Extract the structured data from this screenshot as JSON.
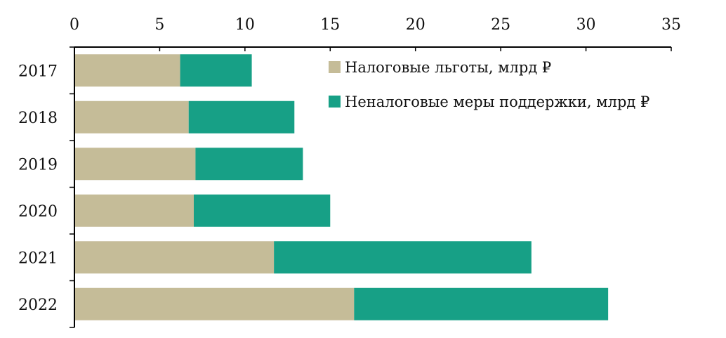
{
  "chart_data": {
    "type": "bar",
    "orientation": "horizontal",
    "stacked": true,
    "categories": [
      "2017",
      "2018",
      "2019",
      "2020",
      "2021",
      "2022"
    ],
    "series": [
      {
        "name": "Налоговые льготы, млрд ₽",
        "color": "#c5bc98",
        "values": [
          6.2,
          6.7,
          7.1,
          7.0,
          11.7,
          16.4
        ]
      },
      {
        "name": "Неналоговые меры поддержки, млрд ₽",
        "color": "#17a086",
        "values": [
          4.2,
          6.2,
          6.3,
          8.0,
          15.1,
          14.9
        ]
      }
    ],
    "x_ticks": [
      "0",
      "5",
      "10",
      "15",
      "20",
      "25",
      "30",
      "35"
    ],
    "xlim": [
      0,
      35
    ],
    "x_axis_position": "top",
    "legend_position": "top-right",
    "grid": false
  }
}
